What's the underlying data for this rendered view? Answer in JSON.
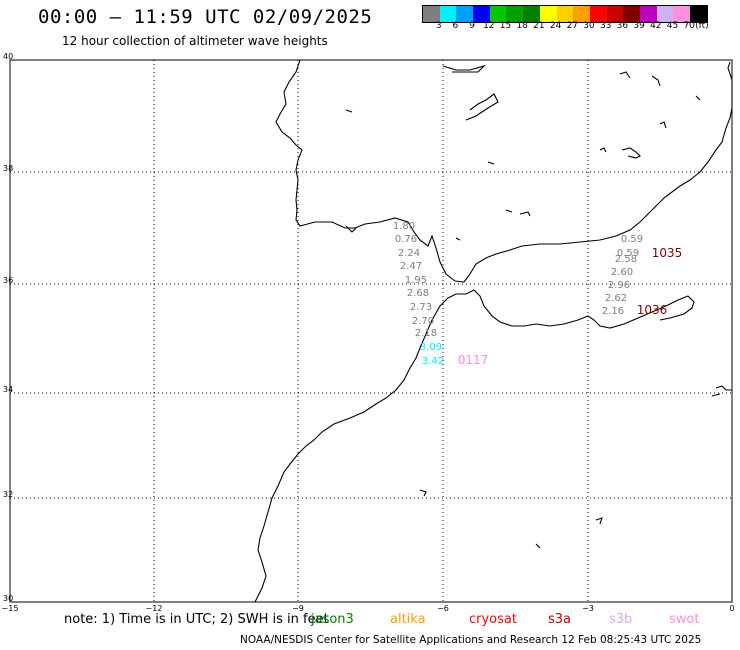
{
  "header": {
    "title": "00:00 – 11:59 UTC 02/09/2025",
    "subtitle": "12 hour collection of altimeter wave heights"
  },
  "colorbar": {
    "colors": [
      "#7f7f7f",
      "#00f0ff",
      "#00a0ff",
      "#0000ff",
      "#00c800",
      "#00a000",
      "#008000",
      "#ffff00",
      "#ffd000",
      "#ffa000",
      "#ff0000",
      "#c80000",
      "#800000",
      "#c000c0",
      "#d0b0f0",
      "#ff90e0",
      "#000000"
    ],
    "labels": [
      "3",
      "6",
      "9",
      "12",
      "15",
      "18",
      "21",
      "24",
      "27",
      "30",
      "33",
      "36",
      "39",
      "42",
      "45",
      "70",
      "(ft)"
    ]
  },
  "axes": {
    "x_ticks": [
      "−15",
      "−12",
      "−9",
      "−6",
      "−3",
      "0"
    ],
    "y_ticks": [
      "40",
      "38",
      "36",
      "34",
      "32",
      "30"
    ]
  },
  "observations": {
    "track_a": [
      {
        "value": "1.80",
        "color": "#7f7f7f"
      },
      {
        "value": "0.76",
        "color": "#7f7f7f"
      },
      {
        "value": "2.24",
        "color": "#7f7f7f"
      },
      {
        "value": "2.47",
        "color": "#7f7f7f"
      },
      {
        "value": "1.95",
        "color": "#7f7f7f"
      },
      {
        "value": "2.68",
        "color": "#7f7f7f"
      },
      {
        "value": "2.73",
        "color": "#7f7f7f"
      },
      {
        "value": "2.70",
        "color": "#7f7f7f"
      },
      {
        "value": "2.18",
        "color": "#7f7f7f"
      },
      {
        "value": "3.09",
        "color": "#00f0ff"
      },
      {
        "value": "3.42",
        "color": "#00f0ff"
      }
    ],
    "track_b": [
      {
        "value": "0.59",
        "color": "#7f7f7f"
      },
      {
        "value": "0.59",
        "color": "#7f7f7f"
      },
      {
        "value": "2.58",
        "color": "#7f7f7f"
      },
      {
        "value": "2.60",
        "color": "#7f7f7f"
      },
      {
        "value": "2.96",
        "color": "#7f7f7f"
      },
      {
        "value": "2.62",
        "color": "#7f7f7f"
      },
      {
        "value": "2.16",
        "color": "#7f7f7f"
      }
    ],
    "track_labels": [
      {
        "text": "0117",
        "color": "#ff90e0"
      },
      {
        "text": "1035",
        "color": "#800000"
      },
      {
        "text": "1036",
        "color": "#800000"
      }
    ]
  },
  "footer": {
    "note": "note: 1) Time is in UTC; 2) SWH is in feet",
    "satellites": [
      {
        "name": "jason3",
        "color": "#008000"
      },
      {
        "name": "altika",
        "color": "#ffa000"
      },
      {
        "name": "cryosat",
        "color": "#ff0000"
      },
      {
        "name": "s3a",
        "color": "#c80000"
      },
      {
        "name": "s3b",
        "color": "#d0b0f0"
      },
      {
        "name": "swot",
        "color": "#ff90e0"
      }
    ],
    "credit": "NOAA/NESDIS Center for Satellite Applications and Research     12 Feb 08:25:43 UTC 2025"
  }
}
